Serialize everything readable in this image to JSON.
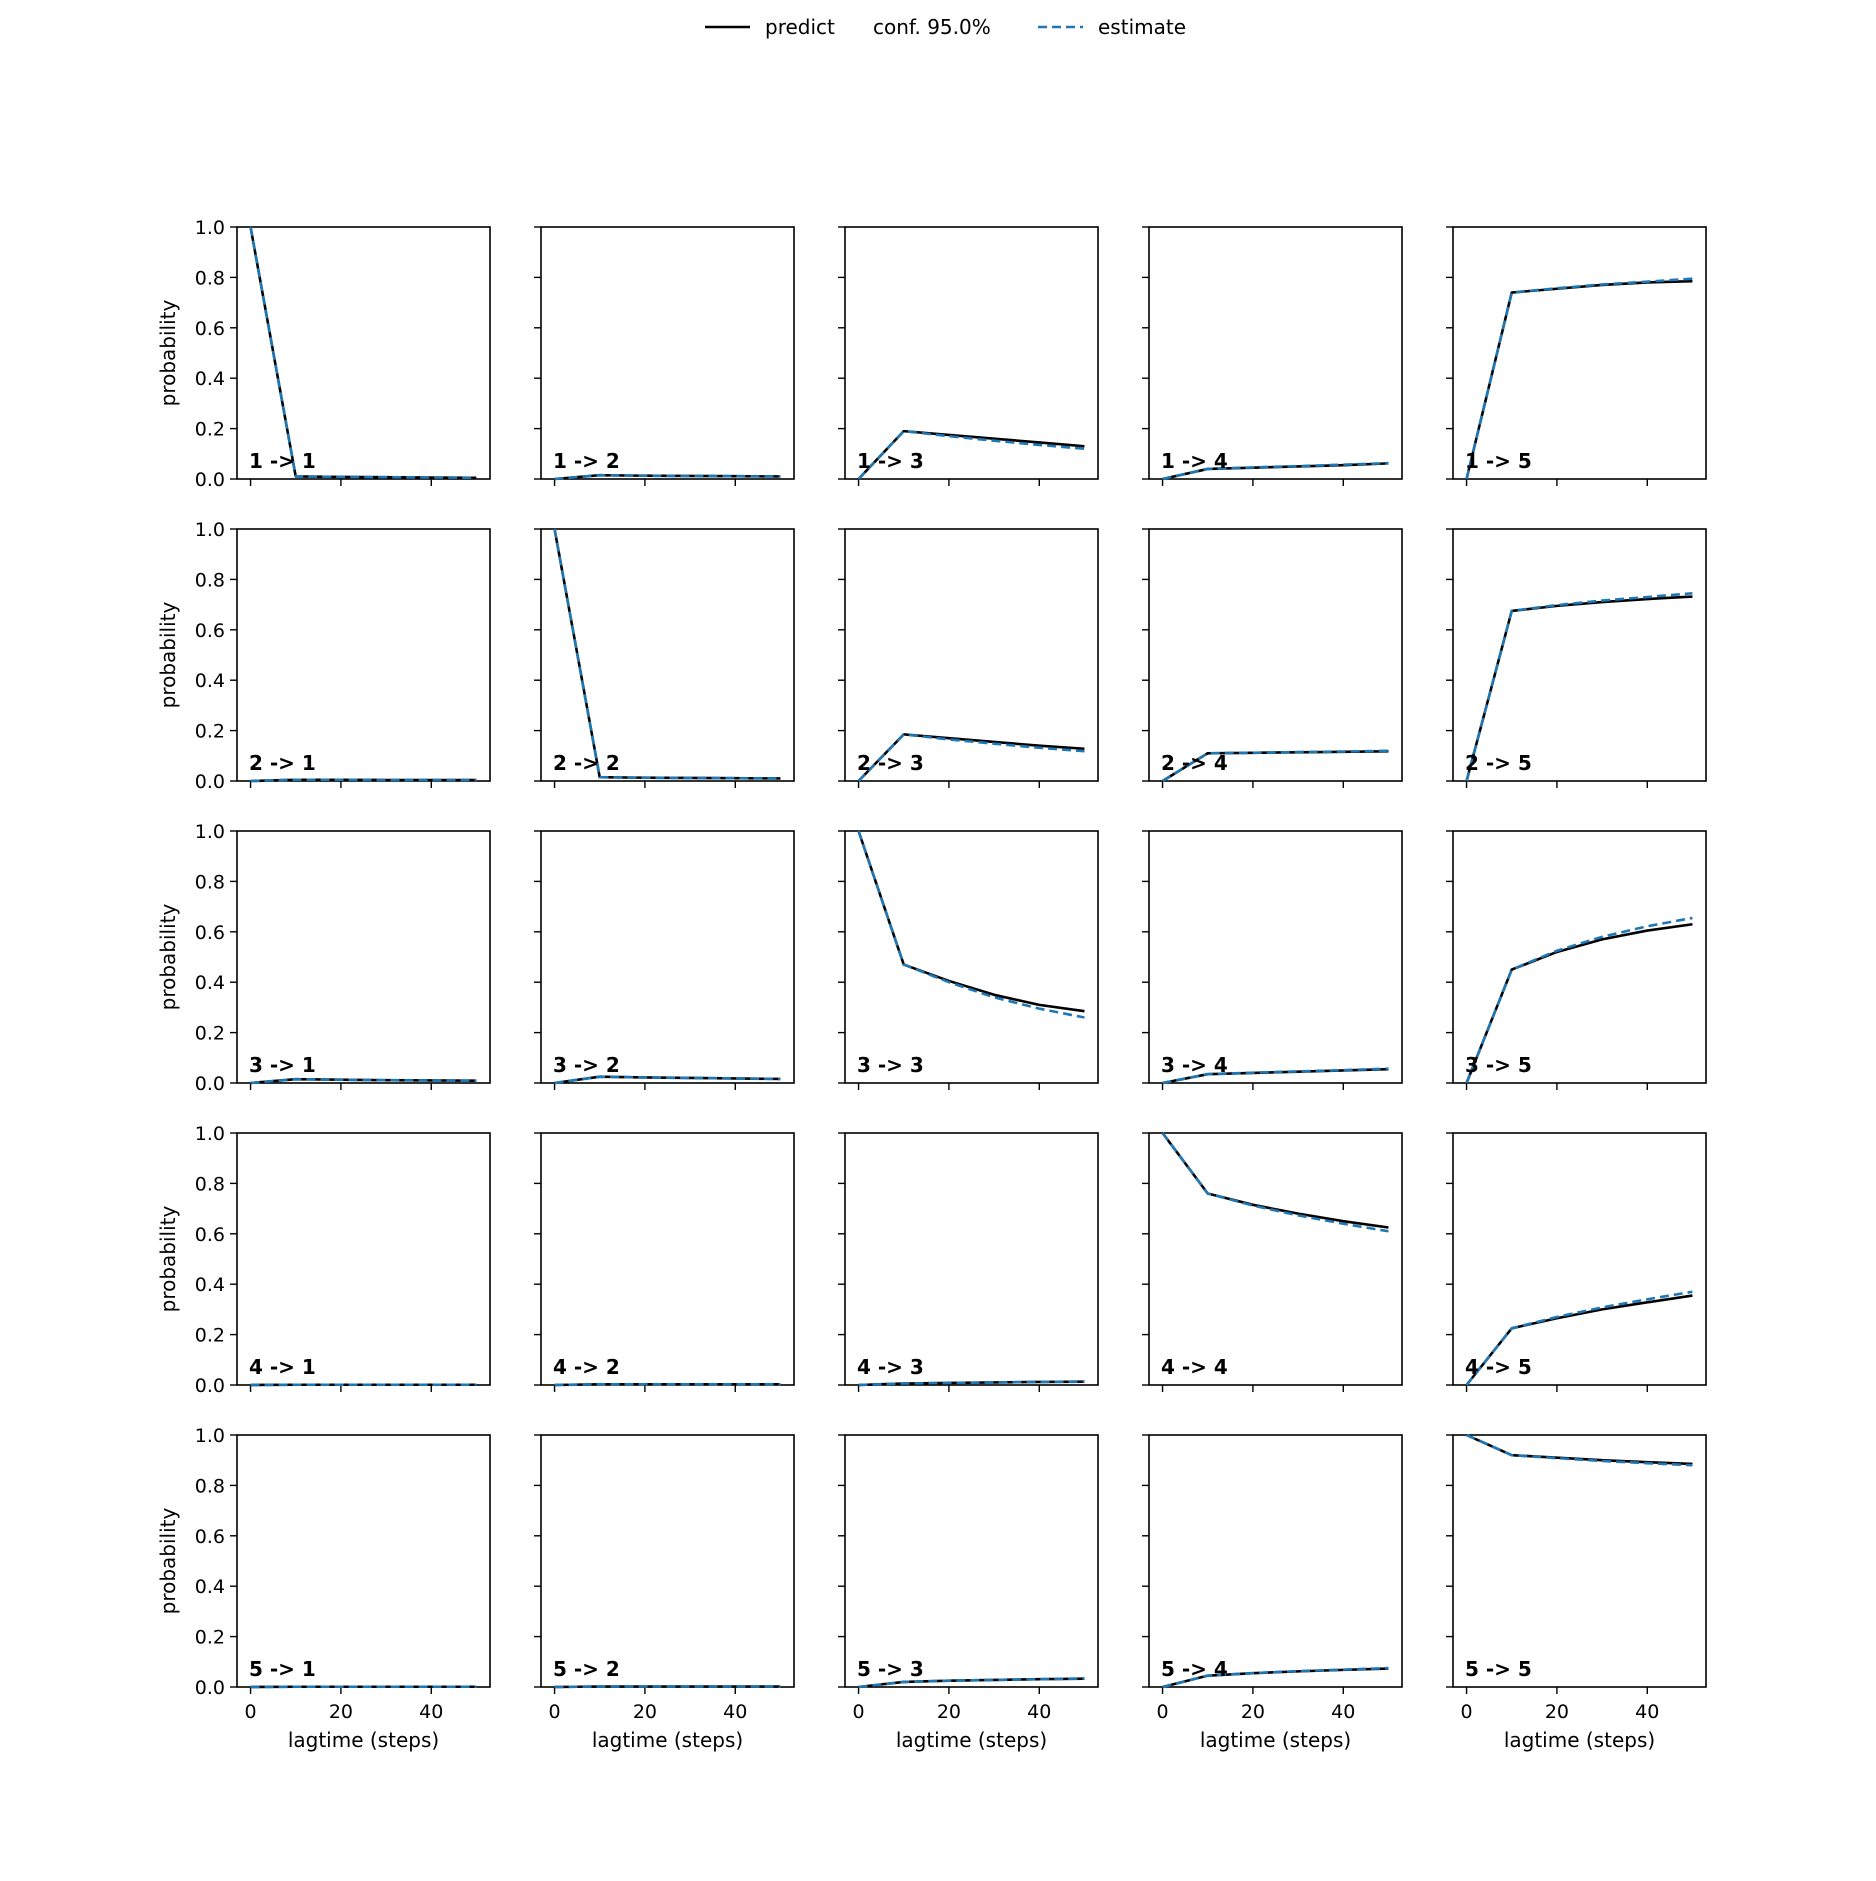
{
  "legend": {
    "items": [
      {
        "label": "predict",
        "style": "solid",
        "color": "#000000"
      },
      {
        "label": "conf. 95.0%",
        "style": "none",
        "color": "#000000"
      },
      {
        "label": "estimate",
        "style": "dashed",
        "color": "#1f77b4"
      }
    ],
    "placement": "top-center"
  },
  "colors": {
    "predict": "#000000",
    "estimate": "#1f77b4",
    "axes": "#000000"
  },
  "chart_data": {
    "type": "line",
    "grid": false,
    "xlabel": "lagtime (steps)",
    "ylabel": "probability",
    "xlim": [
      -3,
      53
    ],
    "ylim": [
      0,
      1
    ],
    "xticks": [
      0,
      20,
      40
    ],
    "yticks": [
      "0.0",
      "0.2",
      "0.4",
      "0.6",
      "0.8",
      "1.0"
    ],
    "x": [
      0,
      10,
      20,
      30,
      40,
      50
    ],
    "rows": 5,
    "cols": 5,
    "panels": [
      {
        "label": "1 -> 1",
        "predict": [
          1.0,
          0.01,
          0.008,
          0.007,
          0.006,
          0.005
        ],
        "estimate": [
          1.0,
          0.01,
          0.008,
          0.007,
          0.006,
          0.005
        ]
      },
      {
        "label": "1 -> 2",
        "predict": [
          0.0,
          0.015,
          0.013,
          0.012,
          0.011,
          0.01
        ],
        "estimate": [
          0.0,
          0.015,
          0.013,
          0.012,
          0.011,
          0.01
        ]
      },
      {
        "label": "1 -> 3",
        "predict": [
          0.0,
          0.19,
          0.175,
          0.16,
          0.145,
          0.13
        ],
        "estimate": [
          0.0,
          0.19,
          0.17,
          0.152,
          0.135,
          0.12
        ]
      },
      {
        "label": "1 -> 4",
        "predict": [
          0.0,
          0.04,
          0.045,
          0.05,
          0.055,
          0.062
        ],
        "estimate": [
          0.0,
          0.04,
          0.046,
          0.051,
          0.057,
          0.063
        ]
      },
      {
        "label": "1 -> 5",
        "predict": [
          0.0,
          0.74,
          0.755,
          0.77,
          0.78,
          0.785
        ],
        "estimate": [
          0.0,
          0.74,
          0.757,
          0.772,
          0.783,
          0.795
        ]
      },
      {
        "label": "2 -> 1",
        "predict": [
          0.0,
          0.005,
          0.005,
          0.004,
          0.004,
          0.004
        ],
        "estimate": [
          0.0,
          0.005,
          0.005,
          0.004,
          0.004,
          0.004
        ]
      },
      {
        "label": "2 -> 2",
        "predict": [
          1.0,
          0.015,
          0.013,
          0.012,
          0.011,
          0.01
        ],
        "estimate": [
          1.0,
          0.015,
          0.013,
          0.012,
          0.011,
          0.01
        ]
      },
      {
        "label": "2 -> 3",
        "predict": [
          0.0,
          0.185,
          0.17,
          0.155,
          0.14,
          0.128
        ],
        "estimate": [
          0.0,
          0.185,
          0.165,
          0.148,
          0.132,
          0.118
        ]
      },
      {
        "label": "2 -> 4",
        "predict": [
          0.0,
          0.11,
          0.112,
          0.114,
          0.116,
          0.118
        ],
        "estimate": [
          0.0,
          0.11,
          0.112,
          0.115,
          0.117,
          0.12
        ]
      },
      {
        "label": "2 -> 5",
        "predict": [
          0.0,
          0.675,
          0.695,
          0.71,
          0.722,
          0.732
        ],
        "estimate": [
          0.0,
          0.675,
          0.698,
          0.716,
          0.73,
          0.745
        ]
      },
      {
        "label": "3 -> 1",
        "predict": [
          0.0,
          0.015,
          0.013,
          0.011,
          0.01,
          0.009
        ],
        "estimate": [
          0.0,
          0.015,
          0.013,
          0.011,
          0.01,
          0.009
        ]
      },
      {
        "label": "3 -> 2",
        "predict": [
          0.0,
          0.025,
          0.022,
          0.02,
          0.018,
          0.016
        ],
        "estimate": [
          0.0,
          0.025,
          0.022,
          0.02,
          0.018,
          0.016
        ]
      },
      {
        "label": "3 -> 3",
        "predict": [
          1.0,
          0.47,
          0.405,
          0.35,
          0.31,
          0.285
        ],
        "estimate": [
          1.0,
          0.47,
          0.4,
          0.34,
          0.295,
          0.26
        ]
      },
      {
        "label": "3 -> 4",
        "predict": [
          0.0,
          0.035,
          0.04,
          0.045,
          0.05,
          0.055
        ],
        "estimate": [
          0.0,
          0.035,
          0.041,
          0.046,
          0.051,
          0.057
        ]
      },
      {
        "label": "3 -> 5",
        "predict": [
          0.0,
          0.45,
          0.52,
          0.57,
          0.605,
          0.63
        ],
        "estimate": [
          0.0,
          0.45,
          0.525,
          0.58,
          0.622,
          0.655
        ]
      },
      {
        "label": "4 -> 1",
        "predict": [
          0.0,
          0.001,
          0.001,
          0.001,
          0.001,
          0.001
        ],
        "estimate": [
          0.0,
          0.001,
          0.001,
          0.001,
          0.001,
          0.001
        ]
      },
      {
        "label": "4 -> 2",
        "predict": [
          0.0,
          0.003,
          0.003,
          0.003,
          0.003,
          0.003
        ],
        "estimate": [
          0.0,
          0.003,
          0.003,
          0.003,
          0.003,
          0.003
        ]
      },
      {
        "label": "4 -> 3",
        "predict": [
          0.0,
          0.006,
          0.008,
          0.01,
          0.012,
          0.013
        ],
        "estimate": [
          0.0,
          0.006,
          0.008,
          0.01,
          0.012,
          0.014
        ]
      },
      {
        "label": "4 -> 4",
        "predict": [
          1.0,
          0.76,
          0.715,
          0.68,
          0.65,
          0.625
        ],
        "estimate": [
          1.0,
          0.76,
          0.712,
          0.673,
          0.64,
          0.61
        ]
      },
      {
        "label": "4 -> 5",
        "predict": [
          0.0,
          0.225,
          0.265,
          0.3,
          0.328,
          0.355
        ],
        "estimate": [
          0.0,
          0.225,
          0.27,
          0.308,
          0.34,
          0.37
        ]
      },
      {
        "label": "5 -> 1",
        "predict": [
          0.0,
          0.001,
          0.001,
          0.001,
          0.001,
          0.001
        ],
        "estimate": [
          0.0,
          0.001,
          0.001,
          0.001,
          0.001,
          0.001
        ]
      },
      {
        "label": "5 -> 2",
        "predict": [
          0.0,
          0.002,
          0.002,
          0.002,
          0.002,
          0.002
        ],
        "estimate": [
          0.0,
          0.002,
          0.002,
          0.002,
          0.002,
          0.002
        ]
      },
      {
        "label": "5 -> 3",
        "predict": [
          0.0,
          0.02,
          0.025,
          0.028,
          0.031,
          0.033
        ],
        "estimate": [
          0.0,
          0.02,
          0.025,
          0.028,
          0.031,
          0.034
        ]
      },
      {
        "label": "5 -> 4",
        "predict": [
          0.0,
          0.045,
          0.055,
          0.062,
          0.068,
          0.073
        ],
        "estimate": [
          0.0,
          0.045,
          0.055,
          0.063,
          0.069,
          0.075
        ]
      },
      {
        "label": "5 -> 5",
        "predict": [
          1.0,
          0.92,
          0.91,
          0.9,
          0.892,
          0.885
        ],
        "estimate": [
          1.0,
          0.92,
          0.908,
          0.897,
          0.888,
          0.88
        ]
      }
    ]
  }
}
